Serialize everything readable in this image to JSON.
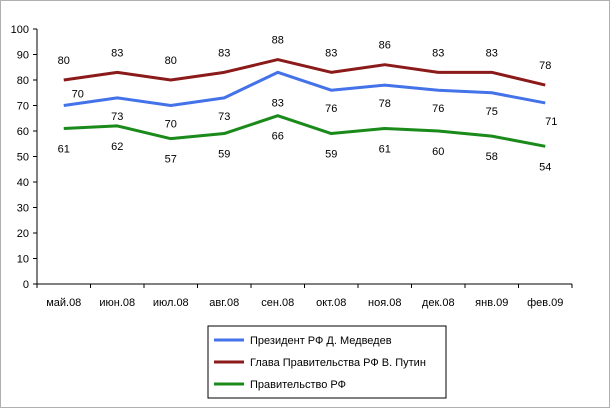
{
  "chart_data": {
    "type": "line",
    "title": "",
    "xlabel": "",
    "ylabel": "",
    "ylim": [
      0,
      100
    ],
    "yticks": [
      0,
      10,
      20,
      30,
      40,
      50,
      60,
      70,
      80,
      90,
      100
    ],
    "grid": false,
    "legend_position": "bottom",
    "categories": [
      "май.08",
      "июн.08",
      "июл.08",
      "авг.08",
      "сен.08",
      "окт.08",
      "ноя.08",
      "дек.08",
      "янв.09",
      "фев.09"
    ],
    "series": [
      {
        "name": "Президент РФ Д. Медведев",
        "color": "#4472e8",
        "values": [
          70,
          73,
          70,
          73,
          83,
          76,
          78,
          76,
          75,
          71
        ]
      },
      {
        "name": "Глава Правительства РФ В. Путин",
        "color": "#8b1a1a",
        "values": [
          80,
          83,
          80,
          83,
          88,
          83,
          86,
          83,
          83,
          78
        ]
      },
      {
        "name": "Правительство РФ",
        "color": "#1a8a1a",
        "values": [
          61,
          62,
          57,
          59,
          66,
          59,
          61,
          60,
          58,
          54
        ]
      }
    ]
  }
}
